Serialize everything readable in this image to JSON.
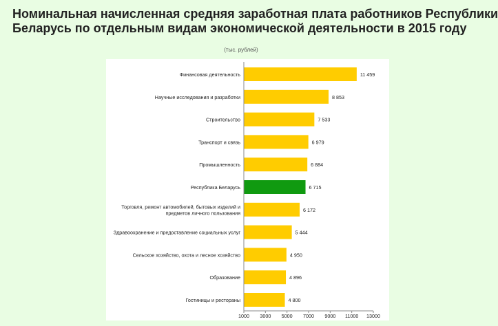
{
  "page": {
    "title_line1": "Номинальная начисленная средняя заработная плата работников Республики",
    "title_line2": "Беларусь по отдельным видам экономической деятельности в 2015 году",
    "units": "(тыс. рублей)"
  },
  "colors": {
    "background": "#e9fde3",
    "panel": "#ffffff",
    "bar": "#ffcc00",
    "bar_highlight": "#109a10"
  },
  "chart_data": {
    "type": "bar",
    "orientation": "horizontal",
    "title": "Номинальная начисленная средняя заработная плата работников Республики Беларусь по отдельным видам экономической деятельности в 2015 году",
    "units": "(тыс. рублей)",
    "xlim": [
      1000,
      13000
    ],
    "xticks": [
      1000,
      3000,
      5000,
      7000,
      9000,
      11000,
      13000
    ],
    "grid": false,
    "categories": [
      [
        "Финансовая деятельность"
      ],
      [
        "Научные исследования и разработки"
      ],
      [
        "Строительство"
      ],
      [
        "Транспорт и связь"
      ],
      [
        "Промышленность"
      ],
      [
        "Республика Беларусь"
      ],
      [
        "Торговля, ремонт автомобилей, бытовых изделий и",
        "предметов личного пользования"
      ],
      [
        "Здравоохранение и предоставление социальных услуг"
      ],
      [
        "Сельское хозяйство, охота и лесное хозяйство"
      ],
      [
        "Образование"
      ],
      [
        "Гостиницы и рестораны"
      ]
    ],
    "values": [
      11459,
      8853,
      7533,
      6979,
      6884,
      6715,
      6172,
      5444,
      4950,
      4896,
      4800
    ],
    "value_labels": [
      "11 459",
      "8 853",
      "7 533",
      "6 979",
      "6 884",
      "6 715",
      "6 172",
      "5 444",
      "4 950",
      "4 896",
      "4 800"
    ],
    "highlight_index": 5
  }
}
